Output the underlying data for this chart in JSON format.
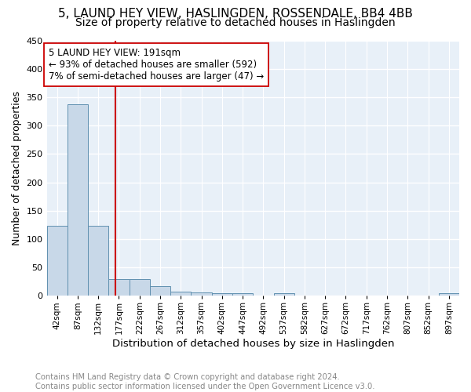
{
  "title1": "5, LAUND HEY VIEW, HASLINGDEN, ROSSENDALE, BB4 4BB",
  "title2": "Size of property relative to detached houses in Haslingden",
  "xlabel": "Distribution of detached houses by size in Haslingden",
  "ylabel": "Number of detached properties",
  "footnote": "Contains HM Land Registry data © Crown copyright and database right 2024.\nContains public sector information licensed under the Open Government Licence v3.0.",
  "bar_edges": [
    42,
    87,
    132,
    177,
    222,
    267,
    312,
    357,
    402,
    447,
    492,
    537,
    582,
    627,
    672,
    717,
    762,
    807,
    852,
    897,
    942
  ],
  "bar_heights": [
    124,
    338,
    124,
    30,
    30,
    17,
    8,
    6,
    5,
    5,
    0,
    5,
    0,
    0,
    0,
    0,
    0,
    0,
    0,
    5
  ],
  "bar_color": "#c8d8e8",
  "bar_edge_color": "#6090b0",
  "vline_x": 191,
  "vline_color": "#cc0000",
  "annotation_text": "5 LAUND HEY VIEW: 191sqm\n← 93% of detached houses are smaller (592)\n7% of semi-detached houses are larger (47) →",
  "annotation_box_color": "white",
  "annotation_box_edge": "#cc0000",
  "ylim": [
    0,
    450
  ],
  "yticks": [
    0,
    50,
    100,
    150,
    200,
    250,
    300,
    350,
    400,
    450
  ],
  "bg_color": "#e8f0f8",
  "grid_color": "white",
  "title1_fontsize": 11,
  "title2_fontsize": 10,
  "xlabel_fontsize": 9.5,
  "ylabel_fontsize": 9,
  "tick_fontsize": 8,
  "xtick_fontsize": 7.5,
  "footnote_fontsize": 7.2,
  "annotation_fontsize": 8.5
}
